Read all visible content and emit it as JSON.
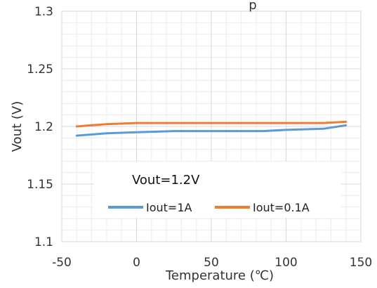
{
  "chart_data": {
    "type": "line",
    "title": "p",
    "xlabel": "Temperature (℃)",
    "ylabel": "Vout (V)",
    "xlim": [
      -50,
      150
    ],
    "ylim": [
      1.1,
      1.3
    ],
    "x_ticks": [
      -50,
      0,
      50,
      100,
      150
    ],
    "y_ticks": [
      1.1,
      1.15,
      1.2,
      1.25,
      1.3
    ],
    "x_tick_labels": [
      "-50",
      "0",
      "50",
      "100",
      "150"
    ],
    "y_tick_labels": [
      "1.1",
      "1.15",
      "1.2",
      "1.25",
      "1.3"
    ],
    "grid": true,
    "legend": {
      "placement": "bottom-center",
      "title": "Vout=1.2V"
    },
    "series": [
      {
        "name": "Iout=1A",
        "color": "#5B9BD5",
        "x": [
          -40,
          -20,
          0,
          25,
          50,
          85,
          100,
          125,
          140
        ],
        "y": [
          1.192,
          1.194,
          1.195,
          1.196,
          1.196,
          1.196,
          1.197,
          1.198,
          1.201
        ]
      },
      {
        "name": "Iout=0.1A",
        "color": "#ED7D31",
        "x": [
          -40,
          -20,
          0,
          25,
          50,
          85,
          100,
          125,
          140
        ],
        "y": [
          1.2,
          1.202,
          1.203,
          1.203,
          1.203,
          1.203,
          1.203,
          1.203,
          1.204
        ]
      }
    ]
  }
}
